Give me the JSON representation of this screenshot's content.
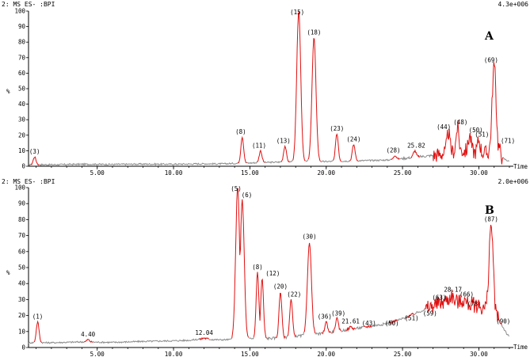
{
  "colors": {
    "baseline": "#8c8c8c",
    "peak": "#e01010",
    "axis": "#000000"
  },
  "chart_data": [
    {
      "type": "line",
      "panel_label": "A",
      "header_left": "2: MS ES- :BPI",
      "header_right": "4.3e+006",
      "ylabel": "%",
      "xlabel": "Time",
      "xlim": [
        0.5,
        32.0
      ],
      "ylim": [
        0,
        100
      ],
      "xticks": [
        5,
        10,
        15,
        20,
        25,
        30
      ],
      "xtick_labels": [
        "5.00",
        "10.00",
        "15.00",
        "20.00",
        "25.00",
        "30.00"
      ],
      "yticks": [
        0,
        10,
        20,
        30,
        40,
        50,
        60,
        70,
        80,
        90,
        100
      ],
      "ytick_labels": [
        "0",
        "10",
        "20",
        "30",
        "40",
        "50",
        "60",
        "70",
        "80",
        "90",
        "100"
      ],
      "background_trace": {
        "x": [
          0.5,
          2,
          4,
          6,
          8,
          10,
          12,
          13,
          14,
          18,
          20,
          22,
          24,
          25,
          26,
          27,
          28,
          29,
          30,
          31,
          32
        ],
        "y": [
          1,
          1,
          1.3,
          1.2,
          1.4,
          1.3,
          1.6,
          1.5,
          1.8,
          3,
          3,
          3.5,
          4,
          5,
          6,
          7,
          9,
          10,
          9,
          8,
          3
        ]
      },
      "peaks": [
        {
          "x": 0.9,
          "y": 6,
          "label": "(3)",
          "label_x": 0.9
        },
        {
          "x": 14.5,
          "y": 19,
          "label": "(8)",
          "label_x": 14.4
        },
        {
          "x": 15.7,
          "y": 10,
          "label": "(11)",
          "label_x": 15.6
        },
        {
          "x": 17.3,
          "y": 13,
          "label": "(13)",
          "label_x": 17.2
        },
        {
          "x": 18.2,
          "y": 100,
          "label": "(15)",
          "label_x": 18.1
        },
        {
          "x": 19.2,
          "y": 83,
          "label": "(18)",
          "label_x": 19.2
        },
        {
          "x": 20.7,
          "y": 21,
          "label": "(23)",
          "label_x": 20.7
        },
        {
          "x": 21.8,
          "y": 14,
          "label": "(24)",
          "label_x": 21.8
        },
        {
          "x": 24.5,
          "y": 7,
          "label": "(28)",
          "label_x": 24.4
        },
        {
          "x": 25.8,
          "y": 10,
          "label": "25.82",
          "label_x": 25.9
        },
        {
          "x": 28.0,
          "y": 22,
          "label": "(44)",
          "label_x": 27.7
        },
        {
          "x": 28.6,
          "y": 25,
          "label": "(48)",
          "label_x": 28.8
        },
        {
          "x": 29.4,
          "y": 20,
          "label": "(50)",
          "label_x": 29.8
        },
        {
          "x": 30.0,
          "y": 17,
          "label": "(51)",
          "label_x": 30.2
        },
        {
          "x": 31.0,
          "y": 65,
          "label": "(69)",
          "label_x": 30.8
        },
        {
          "x": 31.3,
          "y": 13,
          "label": "(71)",
          "label_x": 31.9
        }
      ],
      "red_region": {
        "x_start": 27.0,
        "x_end": 31.5
      }
    },
    {
      "type": "line",
      "panel_label": "B",
      "header_left": "2: MS ES- :BPI",
      "header_right": "2.0e+006",
      "ylabel": "%",
      "xlabel": "Time",
      "xlim": [
        0.5,
        32.0
      ],
      "ylim": [
        0,
        100
      ],
      "xticks": [
        5,
        10,
        15,
        20,
        25,
        30
      ],
      "xtick_labels": [
        "5.00",
        "10.00",
        "15.00",
        "20.00",
        "25.00",
        "30.00"
      ],
      "yticks": [
        0,
        10,
        20,
        30,
        40,
        50,
        60,
        70,
        80,
        90,
        100
      ],
      "ytick_labels": [
        "0",
        "10",
        "20",
        "30",
        "40",
        "50",
        "60",
        "70",
        "80",
        "90",
        "100"
      ],
      "background_trace": {
        "x": [
          0.5,
          2,
          4,
          6,
          8,
          10,
          11,
          12,
          13,
          14,
          17,
          20,
          22,
          24,
          25,
          26,
          27,
          28,
          29,
          30,
          31,
          32
        ],
        "y": [
          3,
          3,
          3.5,
          3.2,
          3.8,
          4.2,
          4.5,
          5.5,
          4.8,
          5,
          6,
          9,
          12,
          15,
          18,
          22,
          26,
          30,
          28,
          26,
          22,
          6
        ]
      },
      "peaks": [
        {
          "x": 1.1,
          "y": 16,
          "label": "(1)",
          "label_x": 1.1
        },
        {
          "x": 4.4,
          "y": 5,
          "label": "4.40",
          "label_x": 4.4
        },
        {
          "x": 12.0,
          "y": 6,
          "label": "12.04",
          "label_x": 12.0
        },
        {
          "x": 14.2,
          "y": 100,
          "label": "(5)",
          "label_x": 14.1
        },
        {
          "x": 14.5,
          "y": 92,
          "label": "(6)",
          "label_x": 14.8
        },
        {
          "x": 15.5,
          "y": 47,
          "label": "(8)",
          "label_x": 15.5
        },
        {
          "x": 15.8,
          "y": 43,
          "label": "(12)",
          "label_x": 16.5
        },
        {
          "x": 17.0,
          "y": 35,
          "label": "(20)",
          "label_x": 17.0
        },
        {
          "x": 17.7,
          "y": 30,
          "label": "(22)",
          "label_x": 17.9
        },
        {
          "x": 18.9,
          "y": 66,
          "label": "(30)",
          "label_x": 18.9
        },
        {
          "x": 20.0,
          "y": 16,
          "label": "(36)",
          "label_x": 19.9
        },
        {
          "x": 20.7,
          "y": 18,
          "label": "(39)",
          "label_x": 20.8
        },
        {
          "x": 21.6,
          "y": 13,
          "label": "21.61",
          "label_x": 21.6
        },
        {
          "x": 22.7,
          "y": 12,
          "label": "(43)",
          "label_x": 22.8
        },
        {
          "x": 24.4,
          "y": 12,
          "label": "(50)",
          "label_x": 24.3
        },
        {
          "x": 25.5,
          "y": 15,
          "label": "(51)",
          "label_x": 25.6
        },
        {
          "x": 26.7,
          "y": 18,
          "label": "(59)",
          "label_x": 26.8
        },
        {
          "x": 27.5,
          "y": 28,
          "label": "(63)",
          "label_x": 27.4
        },
        {
          "x": 28.2,
          "y": 33,
          "label": "28.17",
          "label_x": 28.3
        },
        {
          "x": 29.0,
          "y": 30,
          "label": "(66)",
          "label_x": 29.2
        },
        {
          "x": 29.6,
          "y": 24,
          "label": "(78)",
          "label_x": 29.7
        },
        {
          "x": 30.8,
          "y": 77,
          "label": "(87)",
          "label_x": 30.8
        },
        {
          "x": 31.2,
          "y": 13,
          "label": "(90)",
          "label_x": 31.6
        }
      ],
      "red_region": {
        "x_start": 26.5,
        "x_end": 31.3
      }
    }
  ]
}
